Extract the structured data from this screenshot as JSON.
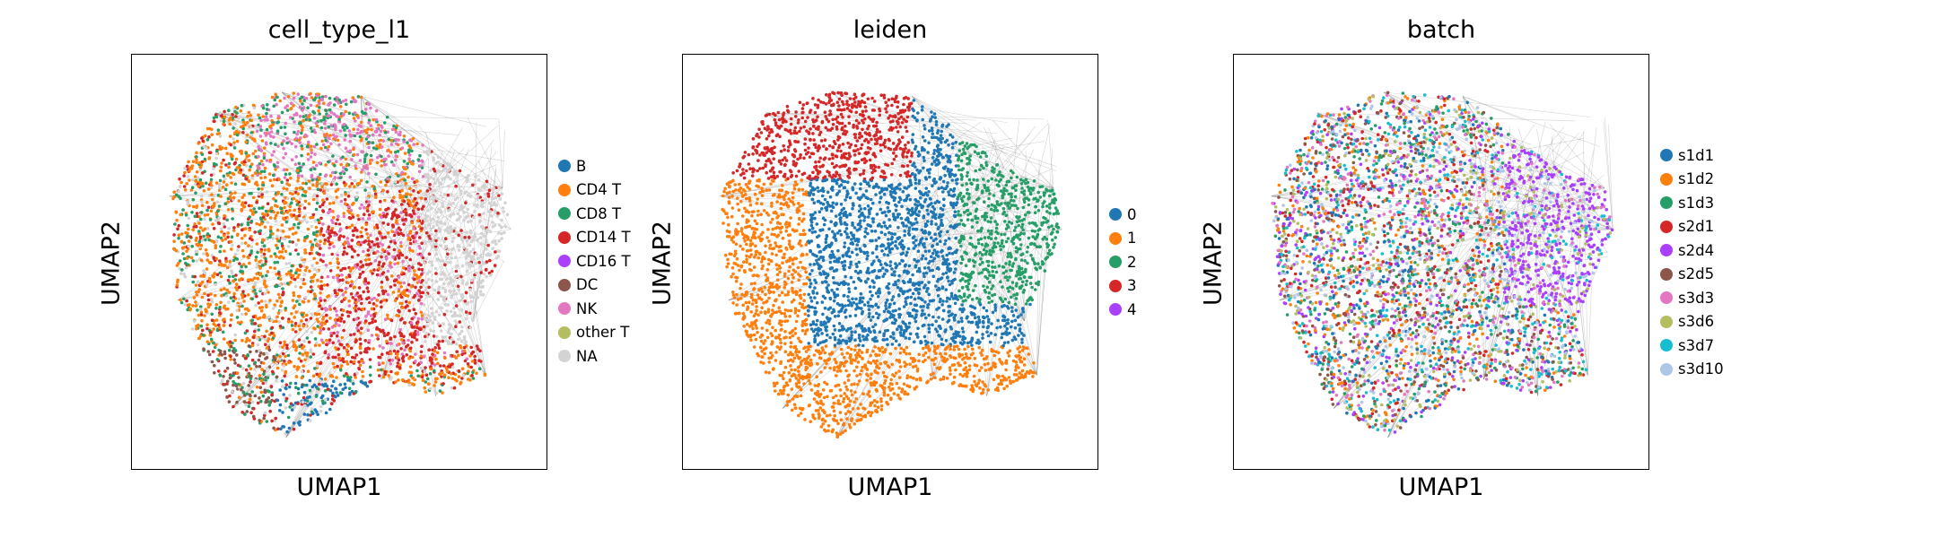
{
  "chart_data": [
    {
      "type": "scatter",
      "title": "cell_type_l1",
      "xlabel": "UMAP1",
      "ylabel": "UMAP2",
      "legend_position": "right",
      "categories": [
        "B",
        "CD4 T",
        "CD8 T",
        "CD14 T",
        "CD16 T",
        "DC",
        "NK",
        "other T",
        "NA"
      ],
      "colors": [
        "#1f77b4",
        "#ff7f0e",
        "#279e68",
        "#d62728",
        "#aa40fc",
        "#8c564b",
        "#e377c2",
        "#b5bd61",
        "#d3d3d3"
      ]
    },
    {
      "type": "scatter",
      "title": "leiden",
      "xlabel": "UMAP1",
      "ylabel": "UMAP2",
      "legend_position": "right",
      "categories": [
        "0",
        "1",
        "2",
        "3",
        "4"
      ],
      "colors": [
        "#1f77b4",
        "#ff7f0e",
        "#279e68",
        "#d62728",
        "#aa40fc"
      ]
    },
    {
      "type": "scatter",
      "title": "batch",
      "xlabel": "UMAP1",
      "ylabel": "UMAP2",
      "legend_position": "right",
      "categories": [
        "s1d1",
        "s1d2",
        "s1d3",
        "s2d1",
        "s2d4",
        "s2d5",
        "s3d3",
        "s3d6",
        "s3d7",
        "s3d10"
      ],
      "colors": [
        "#1f77b4",
        "#ff7f0e",
        "#279e68",
        "#d62728",
        "#aa40fc",
        "#8c564b",
        "#e377c2",
        "#b5bd61",
        "#17becf",
        "#aec7e8"
      ]
    }
  ]
}
